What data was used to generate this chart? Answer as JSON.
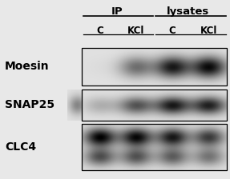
{
  "fig_bg": "#e8e8e8",
  "panel_bg": "#d8d8d8",
  "labels_left": [
    "Moesin",
    "SNAP25",
    "CLC4"
  ],
  "header_ip": "IP",
  "header_ly": "lysates",
  "col_labels": [
    "C",
    "KCl",
    "C",
    "KCl"
  ],
  "label_fontsize": 10,
  "header_fontsize": 9.5,
  "col_label_fontsize": 8.5,
  "moesin_bands": [
    0.02,
    0.5,
    0.88,
    0.95
  ],
  "snap25_bands": [
    0.22,
    0.62,
    0.88,
    0.85
  ],
  "clc4_bands": [
    0.95,
    0.92,
    0.85,
    0.7
  ],
  "clc4_double": true
}
